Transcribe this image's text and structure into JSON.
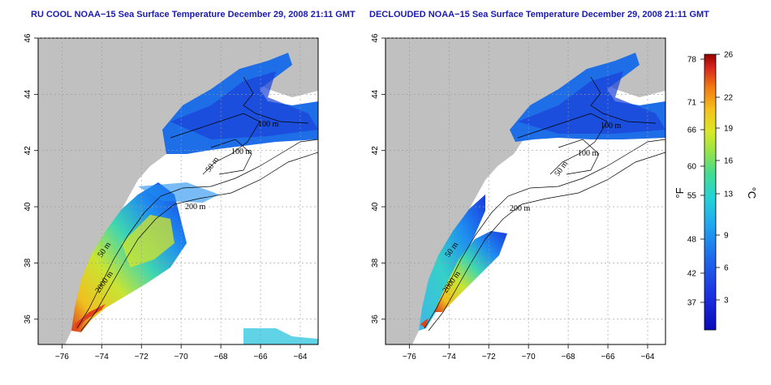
{
  "titles": {
    "left": "RU COOL NOAA−15 Sea Surface Temperature December 29, 2008 21:11 GMT",
    "right": "DECLOUDED NOAA−15 Sea Surface Temperature December 29, 2008 21:11 GMT"
  },
  "map": {
    "lon_ticks": [
      "−76",
      "−74",
      "−72",
      "−70",
      "−68",
      "−66",
      "−64"
    ],
    "lat_ticks": [
      "36",
      "38",
      "40",
      "42",
      "44",
      "46"
    ],
    "lon_range": [
      -77.2,
      -63.1
    ],
    "lat_range": [
      35.1,
      46.0
    ],
    "grid": "dotted",
    "land_color": "#c0c0c0",
    "ocean_no_data_color": "#ffffff"
  },
  "contours": {
    "left": [
      "100 m",
      "100 m",
      "50 m",
      "200 m",
      "50 m",
      "2000 m"
    ],
    "right": [
      "100 m",
      "100 m",
      "50 m",
      "200 m",
      "50 m",
      "2000 m"
    ]
  },
  "colorbar": {
    "f_ticks": [
      "78",
      "71",
      "66",
      "60",
      "55",
      "48",
      "42",
      "37"
    ],
    "c_ticks": [
      "26",
      "22",
      "19",
      "16",
      "13",
      "9",
      "6",
      "3"
    ],
    "f_label": "°F",
    "c_label": "°C",
    "colors": [
      "#9b0000",
      "#e52020",
      "#f27a10",
      "#f5c21a",
      "#d6e826",
      "#8ae04a",
      "#39d88e",
      "#1ed0d8",
      "#1e9cf0",
      "#1f5ce8",
      "#1828d8",
      "#0a0ab8"
    ]
  }
}
